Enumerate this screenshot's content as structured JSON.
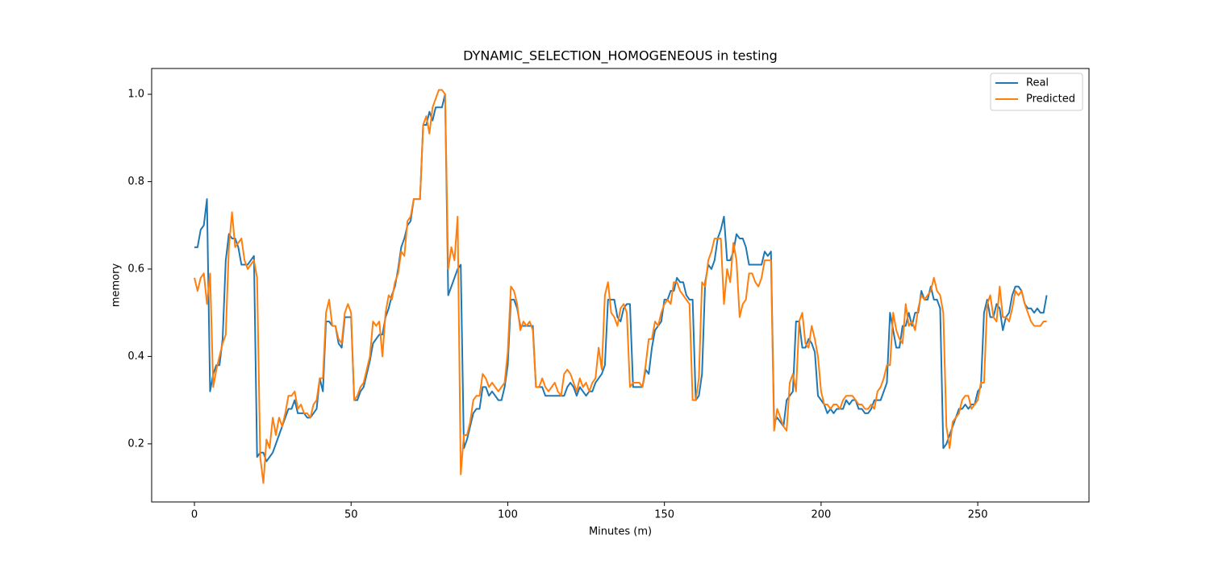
{
  "chart_data": {
    "type": "line",
    "title": "DYNAMIC_SELECTION_HOMOGENEOUS in testing",
    "x_label": "Minutes (m)",
    "y_label": "memory",
    "x": [
      0,
      1,
      2,
      3,
      4,
      5,
      6,
      7,
      8,
      9,
      10,
      11,
      12,
      13,
      14,
      15,
      16,
      17,
      18,
      19,
      20,
      21,
      22,
      23,
      24,
      25,
      26,
      27,
      28,
      29,
      30,
      31,
      32,
      33,
      34,
      35,
      36,
      37,
      38,
      39,
      40,
      41,
      42,
      43,
      44,
      45,
      46,
      47,
      48,
      49,
      50,
      51,
      52,
      53,
      54,
      55,
      56,
      57,
      58,
      59,
      60,
      61,
      62,
      63,
      64,
      65,
      66,
      67,
      68,
      69,
      70,
      71,
      72,
      73,
      74,
      75,
      76,
      77,
      78,
      79,
      80,
      81,
      82,
      83,
      84,
      85,
      86,
      87,
      88,
      89,
      90,
      91,
      92,
      93,
      94,
      95,
      96,
      97,
      98,
      99,
      100,
      101,
      102,
      103,
      104,
      105,
      106,
      107,
      108,
      109,
      110,
      111,
      112,
      113,
      114,
      115,
      116,
      117,
      118,
      119,
      120,
      121,
      122,
      123,
      124,
      125,
      126,
      127,
      128,
      129,
      130,
      131,
      132,
      133,
      134,
      135,
      136,
      137,
      138,
      139,
      140,
      141,
      142,
      143,
      144,
      145,
      146,
      147,
      148,
      149,
      150,
      151,
      152,
      153,
      154,
      155,
      156,
      157,
      158,
      159,
      160,
      161,
      162,
      163,
      164,
      165,
      166,
      167,
      168,
      169,
      170,
      171,
      172,
      173,
      174,
      175,
      176,
      177,
      178,
      179,
      180,
      181,
      182,
      183,
      184,
      185,
      186,
      187,
      188,
      189,
      190,
      191,
      192,
      193,
      194,
      195,
      196,
      197,
      198,
      199,
      200,
      201,
      202,
      203,
      204,
      205,
      206,
      207,
      208,
      209,
      210,
      211,
      212,
      213,
      214,
      215,
      216,
      217,
      218,
      219,
      220,
      221,
      222,
      223,
      224,
      225,
      226,
      227,
      228,
      229,
      230,
      231,
      232,
      233,
      234,
      235,
      236,
      237,
      238,
      239,
      240,
      241,
      242,
      243,
      244,
      245,
      246,
      247,
      248,
      249,
      250,
      251,
      252,
      253,
      254,
      255,
      256,
      257,
      258,
      259,
      260,
      261,
      262,
      263,
      264,
      265,
      266,
      267,
      268,
      269,
      270,
      271,
      272
    ],
    "series": [
      {
        "name": "Real",
        "color": "#1f77b4",
        "values": [
          0.65,
          0.65,
          0.69,
          0.7,
          0.76,
          0.32,
          0.36,
          0.38,
          0.38,
          0.44,
          0.62,
          0.68,
          0.67,
          0.67,
          0.65,
          0.61,
          0.61,
          0.61,
          0.62,
          0.63,
          0.17,
          0.18,
          0.18,
          0.16,
          0.17,
          0.18,
          0.2,
          0.22,
          0.24,
          0.26,
          0.28,
          0.28,
          0.3,
          0.27,
          0.27,
          0.27,
          0.26,
          0.26,
          0.27,
          0.28,
          0.35,
          0.32,
          0.48,
          0.48,
          0.47,
          0.47,
          0.43,
          0.42,
          0.49,
          0.49,
          0.49,
          0.3,
          0.3,
          0.32,
          0.33,
          0.36,
          0.39,
          0.43,
          0.44,
          0.45,
          0.45,
          0.49,
          0.51,
          0.54,
          0.56,
          0.6,
          0.65,
          0.67,
          0.7,
          0.71,
          0.76,
          0.76,
          0.76,
          0.93,
          0.93,
          0.96,
          0.94,
          0.97,
          0.97,
          0.97,
          1.0,
          0.54,
          0.56,
          0.58,
          0.6,
          0.61,
          0.19,
          0.21,
          0.24,
          0.27,
          0.28,
          0.28,
          0.33,
          0.33,
          0.31,
          0.32,
          0.31,
          0.3,
          0.3,
          0.33,
          0.38,
          0.53,
          0.53,
          0.51,
          0.47,
          0.47,
          0.47,
          0.47,
          0.47,
          0.33,
          0.33,
          0.33,
          0.31,
          0.31,
          0.31,
          0.31,
          0.31,
          0.31,
          0.31,
          0.33,
          0.34,
          0.33,
          0.31,
          0.33,
          0.32,
          0.31,
          0.32,
          0.32,
          0.34,
          0.35,
          0.36,
          0.38,
          0.53,
          0.53,
          0.53,
          0.49,
          0.48,
          0.51,
          0.52,
          0.52,
          0.33,
          0.33,
          0.33,
          0.33,
          0.37,
          0.36,
          0.42,
          0.46,
          0.47,
          0.48,
          0.53,
          0.53,
          0.55,
          0.55,
          0.58,
          0.57,
          0.57,
          0.54,
          0.53,
          0.53,
          0.3,
          0.31,
          0.36,
          0.57,
          0.61,
          0.6,
          0.62,
          0.67,
          0.69,
          0.72,
          0.62,
          0.62,
          0.64,
          0.68,
          0.67,
          0.67,
          0.65,
          0.61,
          0.61,
          0.61,
          0.61,
          0.61,
          0.64,
          0.63,
          0.64,
          0.25,
          0.26,
          0.25,
          0.24,
          0.3,
          0.31,
          0.32,
          0.48,
          0.48,
          0.42,
          0.42,
          0.44,
          0.43,
          0.41,
          0.31,
          0.3,
          0.29,
          0.27,
          0.28,
          0.27,
          0.28,
          0.28,
          0.28,
          0.3,
          0.29,
          0.3,
          0.3,
          0.28,
          0.28,
          0.27,
          0.27,
          0.28,
          0.3,
          0.3,
          0.3,
          0.32,
          0.34,
          0.5,
          0.46,
          0.42,
          0.42,
          0.47,
          0.47,
          0.5,
          0.47,
          0.5,
          0.5,
          0.55,
          0.53,
          0.53,
          0.56,
          0.53,
          0.53,
          0.51,
          0.19,
          0.2,
          0.22,
          0.24,
          0.26,
          0.28,
          0.28,
          0.29,
          0.28,
          0.29,
          0.29,
          0.32,
          0.33,
          0.5,
          0.53,
          0.49,
          0.49,
          0.52,
          0.51,
          0.46,
          0.49,
          0.5,
          0.54,
          0.56,
          0.56,
          0.55,
          0.52,
          0.51,
          0.51,
          0.5,
          0.51,
          0.5,
          0.5,
          0.54
        ]
      },
      {
        "name": "Predicted",
        "color": "#ff7f0e",
        "values": [
          0.58,
          0.55,
          0.58,
          0.59,
          0.52,
          0.59,
          0.33,
          0.37,
          0.4,
          0.43,
          0.45,
          0.65,
          0.73,
          0.65,
          0.66,
          0.67,
          0.62,
          0.6,
          0.61,
          0.62,
          0.58,
          0.17,
          0.11,
          0.21,
          0.19,
          0.26,
          0.22,
          0.26,
          0.24,
          0.27,
          0.31,
          0.31,
          0.32,
          0.28,
          0.29,
          0.27,
          0.27,
          0.26,
          0.29,
          0.3,
          0.35,
          0.35,
          0.5,
          0.53,
          0.47,
          0.47,
          0.44,
          0.43,
          0.5,
          0.52,
          0.5,
          0.3,
          0.31,
          0.33,
          0.34,
          0.37,
          0.4,
          0.48,
          0.47,
          0.48,
          0.4,
          0.5,
          0.54,
          0.53,
          0.57,
          0.59,
          0.64,
          0.63,
          0.71,
          0.72,
          0.76,
          0.76,
          0.76,
          0.93,
          0.95,
          0.91,
          0.97,
          0.99,
          1.01,
          1.01,
          1.0,
          0.6,
          0.65,
          0.62,
          0.72,
          0.13,
          0.22,
          0.22,
          0.25,
          0.3,
          0.31,
          0.31,
          0.36,
          0.35,
          0.33,
          0.34,
          0.33,
          0.32,
          0.33,
          0.34,
          0.41,
          0.56,
          0.55,
          0.52,
          0.46,
          0.48,
          0.47,
          0.48,
          0.46,
          0.33,
          0.33,
          0.35,
          0.33,
          0.32,
          0.33,
          0.34,
          0.32,
          0.31,
          0.36,
          0.37,
          0.36,
          0.34,
          0.32,
          0.35,
          0.33,
          0.34,
          0.32,
          0.34,
          0.35,
          0.42,
          0.37,
          0.54,
          0.57,
          0.5,
          0.49,
          0.47,
          0.51,
          0.52,
          0.5,
          0.33,
          0.34,
          0.34,
          0.34,
          0.33,
          0.38,
          0.44,
          0.44,
          0.48,
          0.47,
          0.5,
          0.52,
          0.53,
          0.52,
          0.57,
          0.57,
          0.55,
          0.54,
          0.53,
          0.52,
          0.3,
          0.3,
          0.35,
          0.57,
          0.56,
          0.62,
          0.64,
          0.67,
          0.67,
          0.67,
          0.52,
          0.6,
          0.57,
          0.66,
          0.62,
          0.49,
          0.52,
          0.53,
          0.59,
          0.59,
          0.57,
          0.56,
          0.58,
          0.62,
          0.62,
          0.62,
          0.23,
          0.28,
          0.26,
          0.24,
          0.23,
          0.34,
          0.36,
          0.32,
          0.48,
          0.5,
          0.43,
          0.42,
          0.47,
          0.44,
          0.4,
          0.32,
          0.29,
          0.29,
          0.28,
          0.29,
          0.29,
          0.28,
          0.3,
          0.31,
          0.31,
          0.31,
          0.3,
          0.29,
          0.29,
          0.28,
          0.28,
          0.29,
          0.28,
          0.32,
          0.33,
          0.35,
          0.38,
          0.38,
          0.5,
          0.46,
          0.44,
          0.43,
          0.52,
          0.47,
          0.48,
          0.46,
          0.51,
          0.54,
          0.53,
          0.54,
          0.55,
          0.58,
          0.55,
          0.54,
          0.5,
          0.24,
          0.19,
          0.25,
          0.26,
          0.27,
          0.3,
          0.31,
          0.31,
          0.28,
          0.29,
          0.3,
          0.34,
          0.34,
          0.52,
          0.54,
          0.49,
          0.48,
          0.56,
          0.49,
          0.49,
          0.48,
          0.51,
          0.55,
          0.54,
          0.55,
          0.52,
          0.5,
          0.48,
          0.47,
          0.47,
          0.47,
          0.48,
          0.48
        ]
      }
    ],
    "xlim": [
      -13.65,
      285.5
    ],
    "ylim": [
      0.067,
      1.059
    ],
    "xticks": [
      0,
      50,
      100,
      150,
      200,
      250
    ],
    "yticks": [
      0.2,
      0.4,
      0.6,
      0.8,
      {
        "value": 1,
        "label": "1.0"
      }
    ],
    "legend": "upper right",
    "grid": false
  }
}
